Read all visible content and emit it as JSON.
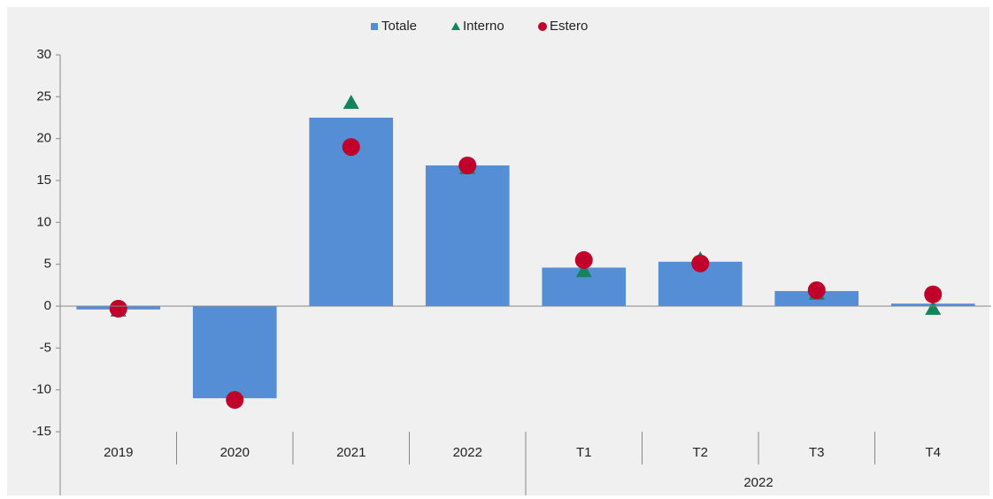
{
  "chart_data": {
    "type": "bar",
    "categories": [
      "2019",
      "2020",
      "2021",
      "2022",
      "T1",
      "T2",
      "T3",
      "T4"
    ],
    "x_group_label": "2022",
    "series": [
      {
        "name": "Totale",
        "color": "#558ed5",
        "marker": "bar",
        "values": [
          -0.4,
          -11.0,
          22.5,
          16.8,
          4.6,
          5.3,
          1.8,
          0.3
        ]
      },
      {
        "name": "Interno",
        "color": "#13845e",
        "marker": "triangle",
        "values": [
          -0.5,
          -11.0,
          24.3,
          16.5,
          4.2,
          5.6,
          1.5,
          -0.3
        ]
      },
      {
        "name": "Estero",
        "color": "#c0002a",
        "marker": "circle",
        "values": [
          -0.3,
          -11.2,
          19.0,
          16.8,
          5.5,
          5.1,
          1.9,
          1.4
        ]
      }
    ],
    "ylim": [
      -15,
      30
    ],
    "yticks": [
      -15,
      -10,
      -5,
      0,
      5,
      10,
      15,
      20,
      25,
      30
    ],
    "legend": "top"
  }
}
